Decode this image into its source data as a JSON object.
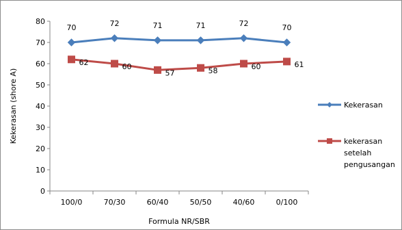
{
  "chart_data": {
    "type": "line",
    "xlabel": "Formula NR/SBR",
    "ylabel": "Kekerasan (shore A)",
    "ylim": [
      0,
      80
    ],
    "y_ticks": [
      0,
      10,
      20,
      30,
      40,
      50,
      60,
      70,
      80
    ],
    "categories": [
      "100/0",
      "70/30",
      "60/40",
      "50/50",
      "40/60",
      "0/100"
    ],
    "grid": false,
    "legend_position": "right",
    "series": [
      {
        "name": "Kekerasan",
        "legend_lines": [
          "Kekerasan"
        ],
        "values": [
          70,
          72,
          71,
          71,
          72,
          70
        ],
        "color": "#4a7ebb",
        "marker": "diamond",
        "label_position": "above"
      },
      {
        "name": "kekerasan setelah pengusangan",
        "legend_lines": [
          "kekerasan",
          "setelah",
          "pengusangan"
        ],
        "values": [
          62,
          60,
          57,
          58,
          60,
          61
        ],
        "color": "#be4b48",
        "marker": "square",
        "label_position": "right"
      }
    ]
  }
}
